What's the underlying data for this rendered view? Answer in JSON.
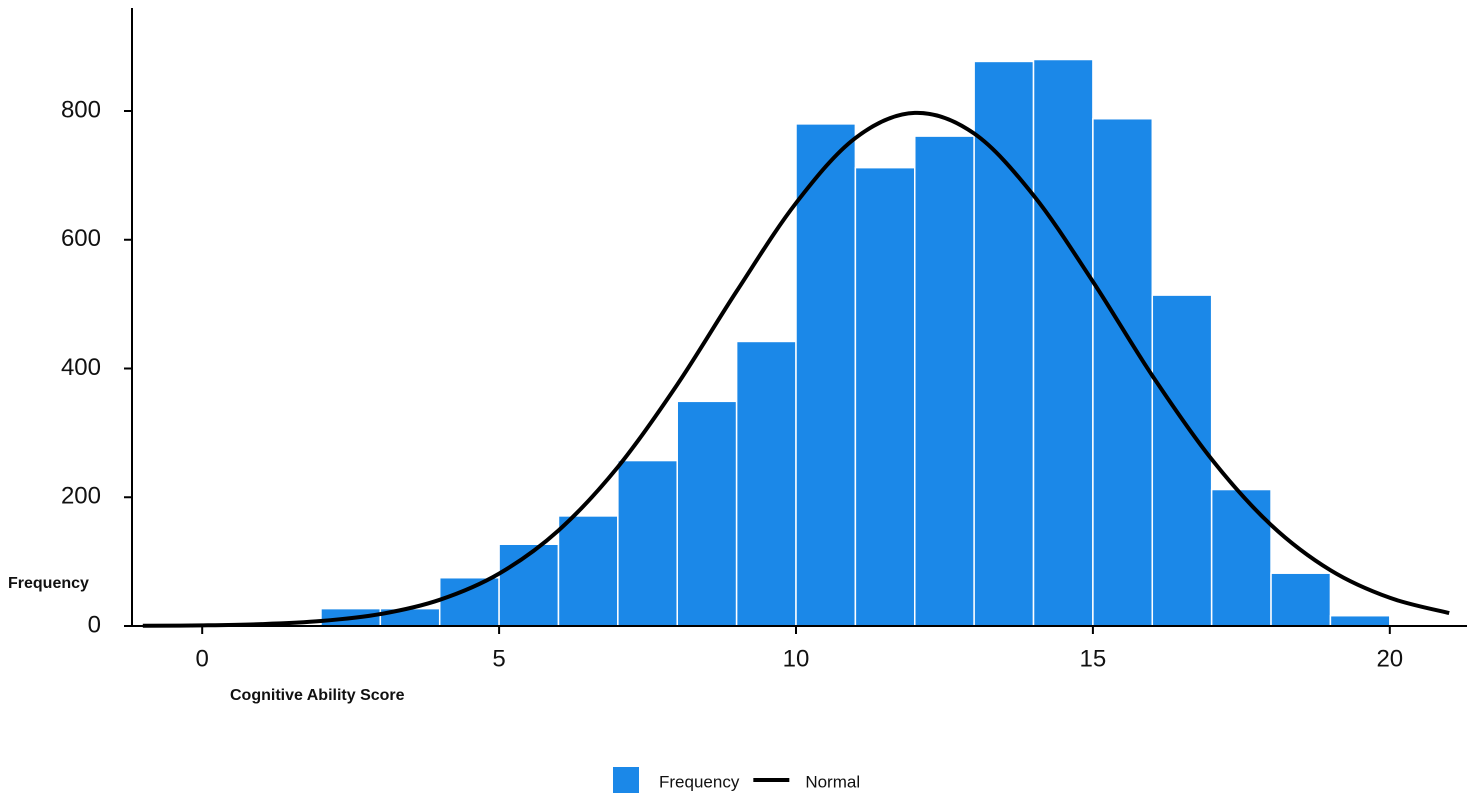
{
  "chart_data": {
    "type": "histogram",
    "x_label": "Cognitive Ability Score",
    "y_label": "Frequency",
    "bins": [
      0,
      1,
      2,
      3,
      4,
      5,
      6,
      7,
      8,
      9,
      10,
      11,
      12,
      13,
      14,
      15,
      16,
      17,
      18,
      19,
      20
    ],
    "series": [
      {
        "name": "Frequency",
        "type": "histogram",
        "color": "#1b88e8",
        "values": [
          0,
          0,
          27,
          27,
          75,
          127,
          171,
          257,
          349,
          442,
          780,
          712,
          761,
          877,
          880,
          788,
          514,
          212,
          82,
          16
        ]
      },
      {
        "name": "Normal",
        "type": "line",
        "color": "#000000",
        "x": [
          -1,
          0,
          1,
          2,
          3,
          4,
          5,
          6,
          7,
          8,
          9,
          10,
          11,
          12,
          13,
          14,
          15,
          16,
          17,
          18,
          19,
          20,
          21
        ],
        "values": [
          0.3,
          1.0,
          2.9,
          7.7,
          18.5,
          40.7,
          81.4,
          148.4,
          247,
          375,
          520,
          657,
          758,
          797,
          765,
          669,
          535,
          389,
          259,
          157,
          86.7,
          43.8,
          20.1
        ]
      }
    ],
    "xlim": [
      -1.3,
      21.3
    ],
    "xticks": [
      0,
      5,
      10,
      15,
      20
    ],
    "ylim": [
      0,
      960
    ],
    "yticks": [
      0,
      200,
      400,
      600,
      800
    ],
    "grid": false,
    "legend": "bottom"
  }
}
